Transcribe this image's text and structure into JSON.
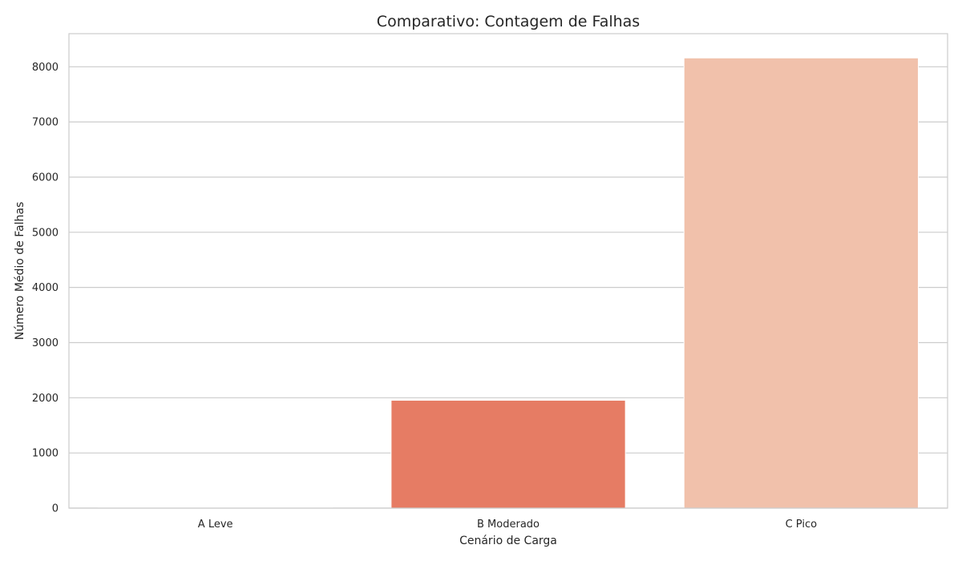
{
  "chart_data": {
    "type": "bar",
    "title": "Comparativo: Contagem de Falhas",
    "xlabel": "Cenário de Carga",
    "ylabel": "Número Médio de Falhas",
    "categories": [
      "A Leve",
      "B Moderado",
      "C Pico"
    ],
    "values": [
      5,
      1955,
      8160
    ],
    "ylim": [
      0,
      8600
    ],
    "yticks": [
      0,
      1000,
      2000,
      3000,
      4000,
      5000,
      6000,
      7000,
      8000
    ],
    "grid": true,
    "legend": "none",
    "colors": [
      "#b2182b",
      "#e67c64",
      "#f1c1ab"
    ]
  },
  "style": {
    "grid_color": "#cccccc",
    "spine_color": "#cccccc",
    "text_color": "#262626"
  }
}
